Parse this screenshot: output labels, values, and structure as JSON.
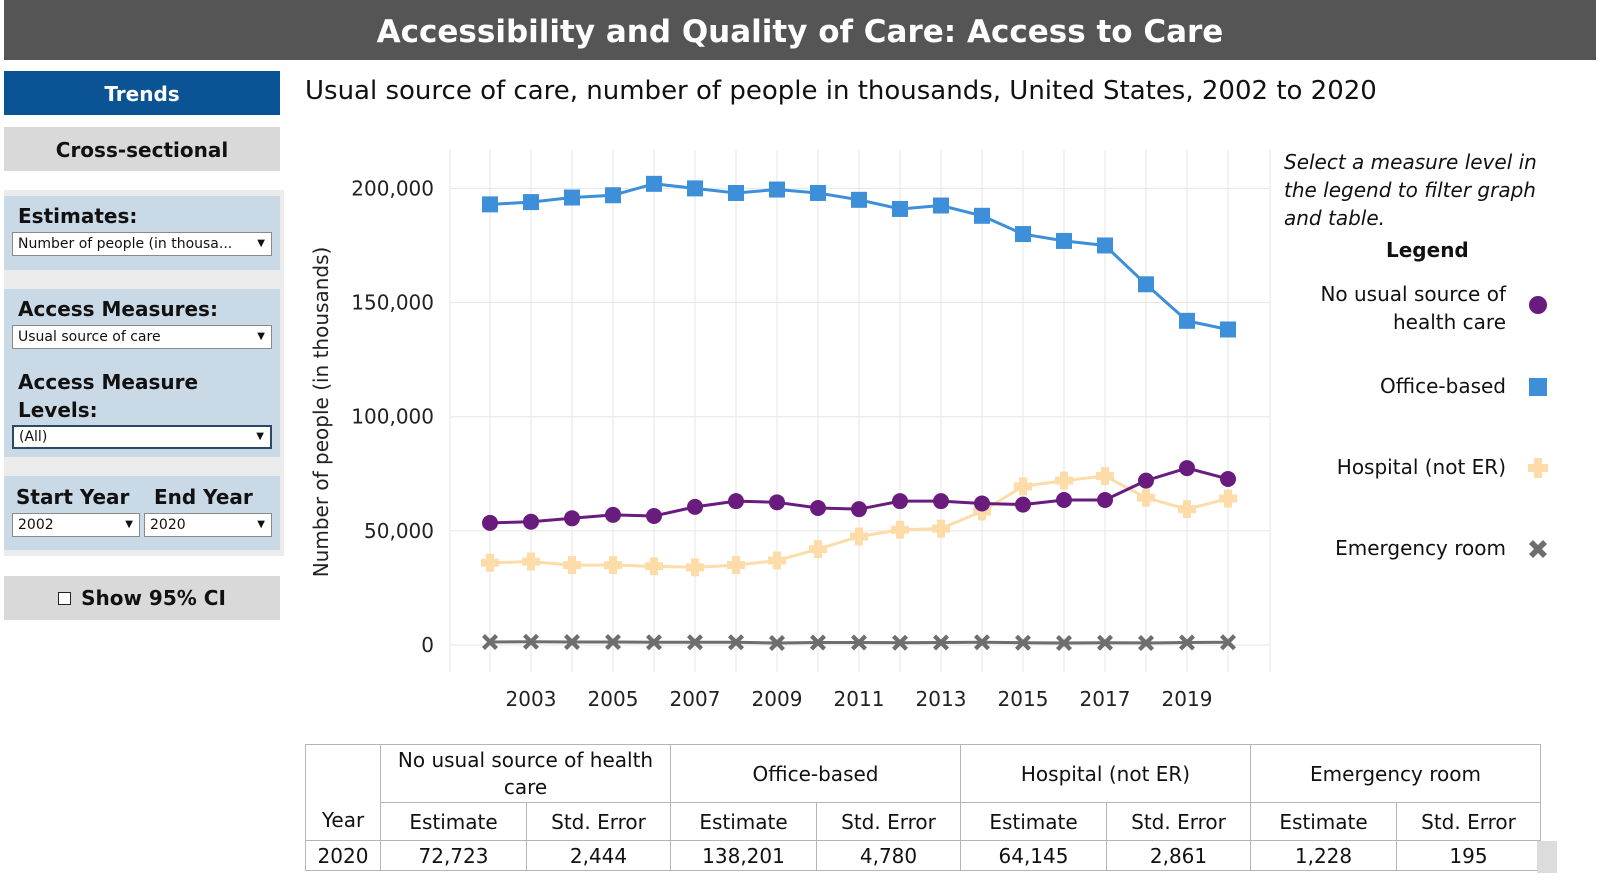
{
  "header": {
    "title": "Accessibility and Quality of Care: Access to Care"
  },
  "tabs": {
    "trends": "Trends",
    "cross_sectional": "Cross-sectional"
  },
  "filters": {
    "estimates_label": "Estimates:",
    "estimates_value": "Number of people (in thousa...",
    "measures_label": "Access Measures:",
    "measures_value": "Usual source of care",
    "levels_label_1": "Access Measure",
    "levels_label_2": "Levels:",
    "levels_value": "(All)",
    "start_label": "Start Year",
    "end_label": "End Year",
    "start_value": "2002",
    "end_value": "2020"
  },
  "ci_button": {
    "label": "Show 95% CI"
  },
  "chart_note": "Select a measure level in the legend to filter graph and table.",
  "chart_data": {
    "type": "line",
    "title": "Usual source of care, number of people in thousands, United States, 2002 to 2020",
    "ylabel": "Number of people (in thousands)",
    "xlabel": "",
    "ylim": [
      0,
      215000
    ],
    "yticks": [
      0,
      50000,
      100000,
      150000,
      200000
    ],
    "ytick_labels": [
      "0",
      "50,000",
      "100,000",
      "150,000",
      "200,000"
    ],
    "xticks_labels": [
      "2003",
      "2005",
      "2007",
      "2009",
      "2011",
      "2013",
      "2015",
      "2017",
      "2019"
    ],
    "grid": true,
    "legend_position": "right",
    "legend_title": "Legend",
    "x": [
      2002,
      2003,
      2004,
      2005,
      2006,
      2007,
      2008,
      2009,
      2010,
      2011,
      2012,
      2013,
      2014,
      2015,
      2016,
      2017,
      2018,
      2019,
      2020
    ],
    "series": [
      {
        "name": "No usual source of health care",
        "legend_lines": [
          "No usual source of",
          "health care"
        ],
        "color": "#6a1b7e",
        "marker": "circle",
        "values": [
          53500,
          54000,
          55500,
          57000,
          56500,
          60500,
          63000,
          62500,
          60000,
          59500,
          63000,
          63000,
          62000,
          61500,
          63500,
          63500,
          72000,
          77500,
          72723
        ]
      },
      {
        "name": "Office-based",
        "legend_lines": [
          "Office-based"
        ],
        "color": "#3c8fd8",
        "marker": "square",
        "values": [
          193000,
          194000,
          196000,
          197000,
          202000,
          200000,
          198000,
          199500,
          198000,
          195000,
          191000,
          192500,
          188000,
          180000,
          177000,
          175000,
          158000,
          142000,
          138201
        ]
      },
      {
        "name": "Hospital (not ER)",
        "legend_lines": [
          "Hospital (not ER)"
        ],
        "color": "#fddcaa",
        "marker": "plus",
        "values": [
          36000,
          36500,
          35000,
          35000,
          34500,
          34000,
          35000,
          37000,
          42000,
          47500,
          50500,
          51000,
          58500,
          69500,
          72000,
          74000,
          64500,
          59500,
          64145
        ]
      },
      {
        "name": "Emergency room",
        "legend_lines": [
          "Emergency room"
        ],
        "color": "#6e6e6e",
        "marker": "x",
        "values": [
          1300,
          1400,
          1300,
          1300,
          1200,
          1200,
          1200,
          900,
          1100,
          1100,
          1000,
          1100,
          1200,
          1000,
          900,
          1000,
          900,
          1100,
          1228
        ]
      }
    ]
  },
  "table": {
    "year_header": "Year",
    "groups": [
      "No usual source of health care",
      "Office-based",
      "Hospital (not ER)",
      "Emergency room"
    ],
    "subheaders": [
      "Estimate",
      "Std. Error"
    ],
    "rows": [
      {
        "year": "2020",
        "cells": [
          "72,723",
          "2,444",
          "138,201",
          "4,780",
          "64,145",
          "2,861",
          "1,228",
          "195"
        ]
      }
    ]
  }
}
